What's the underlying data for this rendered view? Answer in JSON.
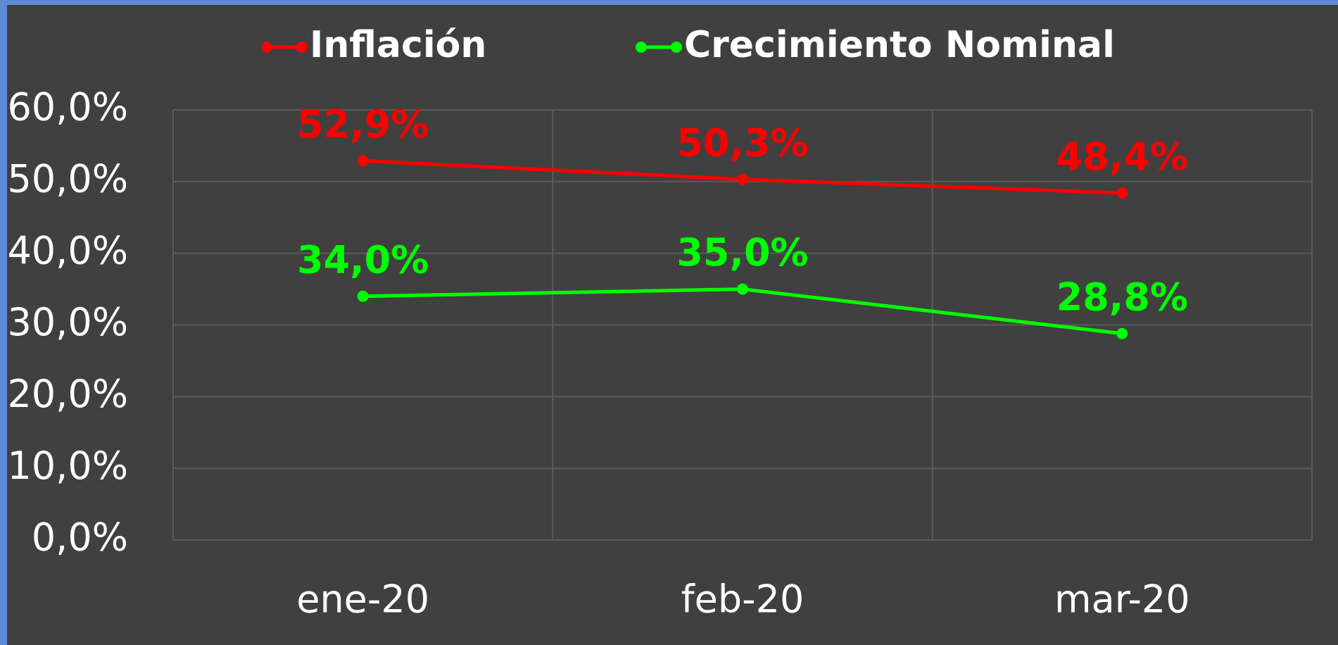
{
  "chart_data": {
    "type": "line",
    "categories": [
      "ene-20",
      "feb-20",
      "mar-20"
    ],
    "series": [
      {
        "name": "Inflación",
        "color": "#ff0000",
        "values": [
          52.9,
          50.3,
          48.4
        ],
        "value_labels": [
          "52,9%",
          "50,3%",
          "48,4%"
        ]
      },
      {
        "name": "Crecimiento Nominal",
        "color": "#00ff00",
        "values": [
          34.0,
          35.0,
          28.8
        ],
        "value_labels": [
          "34,0%",
          "35,0%",
          "28,8%"
        ]
      }
    ],
    "ylim": [
      0,
      60
    ],
    "yticks": [
      {
        "value": 0,
        "label": "0,0%"
      },
      {
        "value": 10,
        "label": "10,0%"
      },
      {
        "value": 20,
        "label": "20,0%"
      },
      {
        "value": 30,
        "label": "30,0%"
      },
      {
        "value": 40,
        "label": "40,0%"
      },
      {
        "value": 50,
        "label": "50,0%"
      },
      {
        "value": 60,
        "label": "60,0%"
      }
    ],
    "grid": true,
    "legend": "top"
  }
}
